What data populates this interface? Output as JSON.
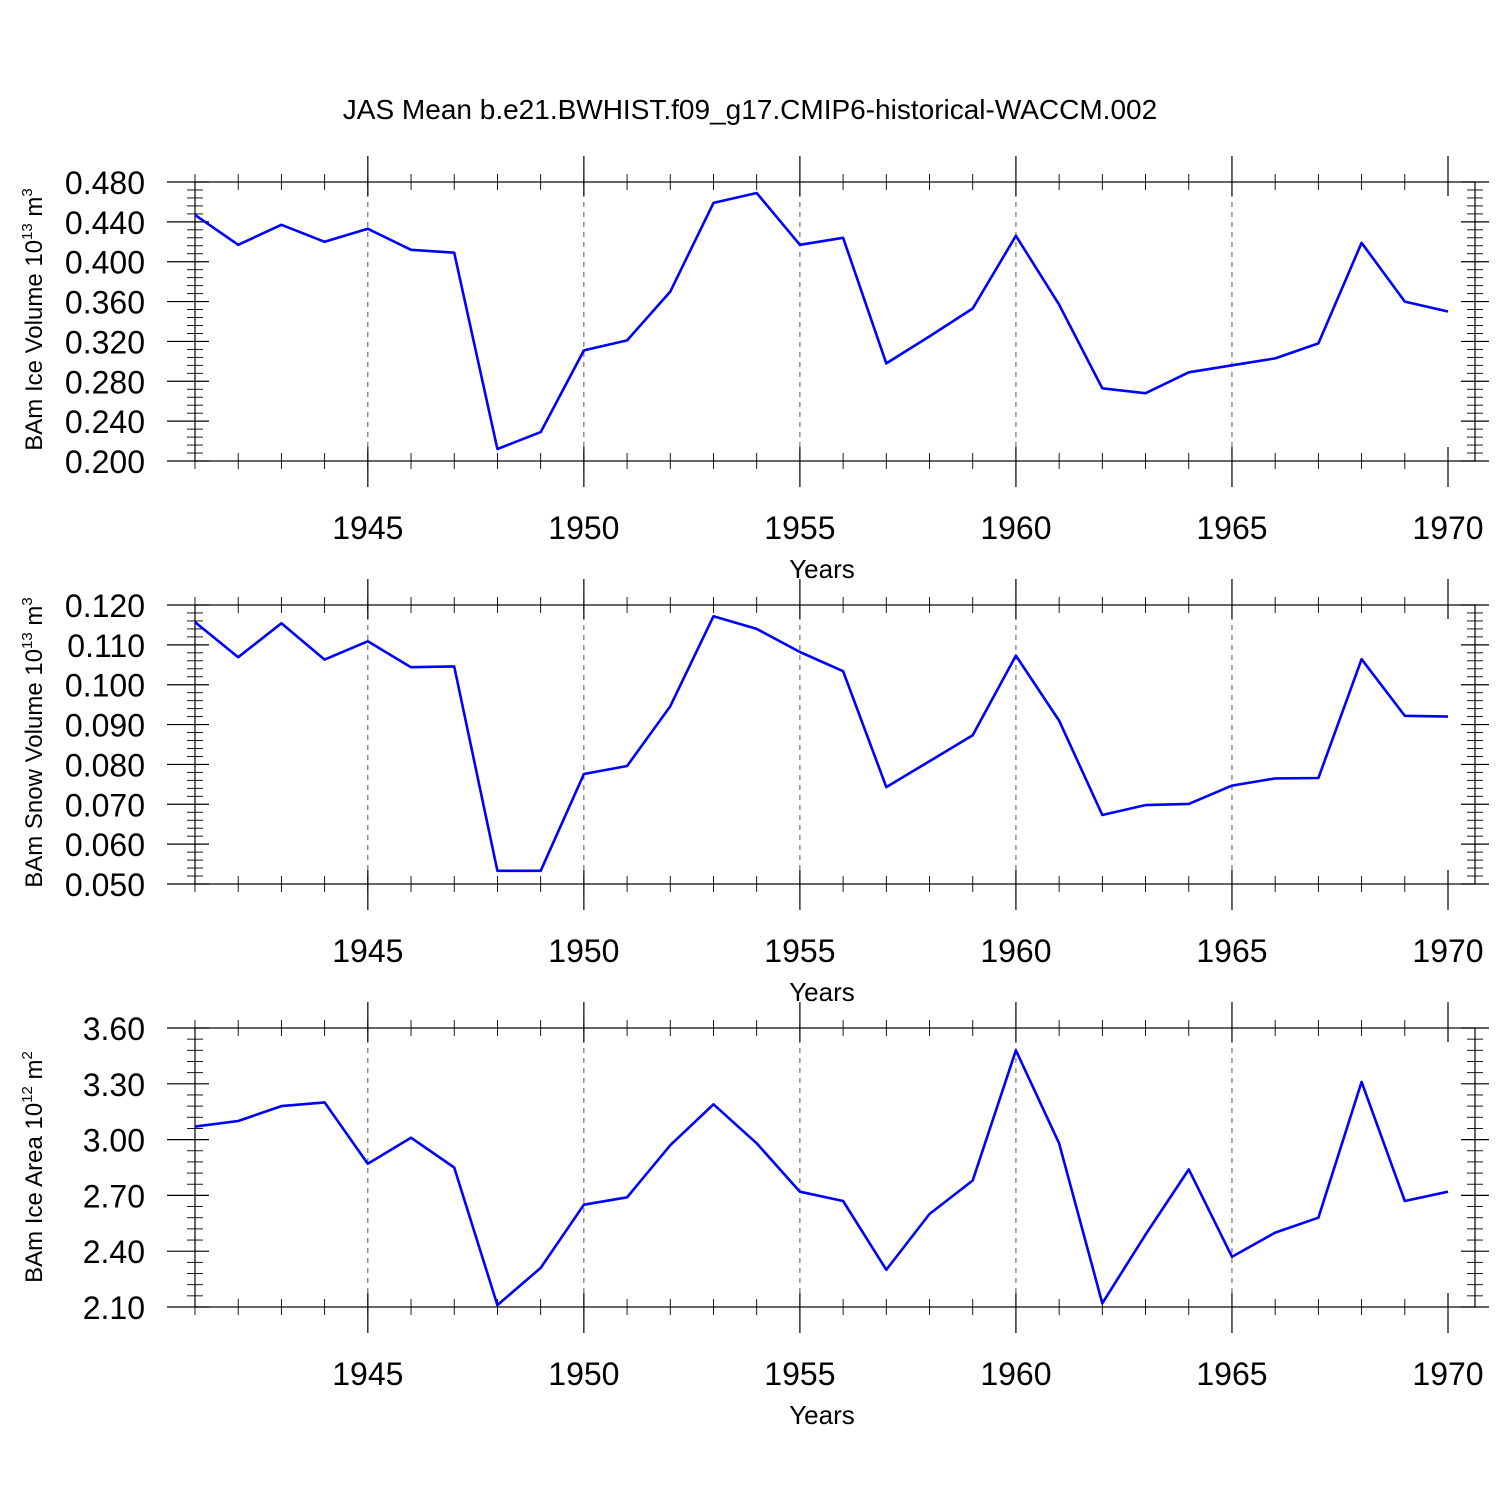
{
  "title": "JAS Mean b.e21.BWHIST.f09_g17.CMIP6-historical-WACCM.002",
  "chart_data": [
    {
      "type": "line",
      "ylabel": "BAm Ice Volume 10",
      "ylabel_exp": "13",
      "ylabel_unit": " m",
      "ylabel_unit_exp": "3",
      "xlabel": "Years",
      "xlim": [
        1941,
        1970
      ],
      "ylim": [
        0.2,
        0.48
      ],
      "xticks": [
        1945,
        1950,
        1955,
        1960,
        1965,
        1970
      ],
      "xtick_labels": [
        "1945",
        "1950",
        "1955",
        "1960",
        "1965",
        "1970"
      ],
      "yticks": [
        0.2,
        0.24,
        0.28,
        0.32,
        0.36,
        0.4,
        0.44,
        0.48
      ],
      "ytick_labels": [
        "0.200",
        "0.240",
        "0.280",
        "0.320",
        "0.360",
        "0.400",
        "0.440",
        "0.480"
      ],
      "vgrid": [
        1945,
        1950,
        1955,
        1960,
        1965
      ],
      "color": "#0000ff",
      "x": [
        1941,
        1942,
        1943,
        1944,
        1945,
        1946,
        1947,
        1948,
        1949,
        1950,
        1951,
        1952,
        1953,
        1954,
        1955,
        1956,
        1957,
        1958,
        1959,
        1960,
        1961,
        1962,
        1963,
        1964,
        1965,
        1966,
        1967,
        1968,
        1969,
        1970
      ],
      "y": [
        0.447,
        0.417,
        0.437,
        0.42,
        0.433,
        0.412,
        0.409,
        0.212,
        0.229,
        0.311,
        0.321,
        0.37,
        0.459,
        0.469,
        0.417,
        0.424,
        0.298,
        0.325,
        0.353,
        0.426,
        0.357,
        0.273,
        0.268,
        0.289,
        0.296,
        0.303,
        0.318,
        0.419,
        0.36,
        0.35
      ]
    },
    {
      "type": "line",
      "ylabel": "BAm Snow Volume 10",
      "ylabel_exp": "13",
      "ylabel_unit": " m",
      "ylabel_unit_exp": "3",
      "xlabel": "Years",
      "xlim": [
        1941,
        1970
      ],
      "ylim": [
        0.05,
        0.12
      ],
      "xticks": [
        1945,
        1950,
        1955,
        1960,
        1965,
        1970
      ],
      "xtick_labels": [
        "1945",
        "1950",
        "1955",
        "1960",
        "1965",
        "1970"
      ],
      "yticks": [
        0.05,
        0.06,
        0.07,
        0.08,
        0.09,
        0.1,
        0.11,
        0.12
      ],
      "ytick_labels": [
        "0.050",
        "0.060",
        "0.070",
        "0.080",
        "0.090",
        "0.100",
        "0.110",
        "0.120"
      ],
      "vgrid": [
        1945,
        1950,
        1955,
        1960,
        1965
      ],
      "color": "#0000ff",
      "x": [
        1941,
        1942,
        1943,
        1944,
        1945,
        1946,
        1947,
        1948,
        1949,
        1950,
        1951,
        1952,
        1953,
        1954,
        1955,
        1956,
        1957,
        1958,
        1959,
        1960,
        1961,
        1962,
        1963,
        1964,
        1965,
        1966,
        1967,
        1968,
        1969,
        1970
      ],
      "y": [
        0.1157,
        0.1069,
        0.1154,
        0.1063,
        0.1109,
        0.1044,
        0.1046,
        0.0533,
        0.0533,
        0.0776,
        0.0796,
        0.0946,
        0.1172,
        0.114,
        0.1082,
        0.1034,
        0.0743,
        0.0808,
        0.0873,
        0.1073,
        0.091,
        0.0673,
        0.0698,
        0.0701,
        0.0747,
        0.0765,
        0.0766,
        0.1064,
        0.0922,
        0.092
      ]
    },
    {
      "type": "line",
      "ylabel": "BAm Ice Area 10",
      "ylabel_exp": "12",
      "ylabel_unit": " m",
      "ylabel_unit_exp": "2",
      "xlabel": "Years",
      "xlim": [
        1941,
        1970
      ],
      "ylim": [
        2.1,
        3.6
      ],
      "xticks": [
        1945,
        1950,
        1955,
        1960,
        1965,
        1970
      ],
      "xtick_labels": [
        "1945",
        "1950",
        "1955",
        "1960",
        "1965",
        "1970"
      ],
      "yticks": [
        2.1,
        2.4,
        2.7,
        3.0,
        3.3,
        3.6
      ],
      "ytick_labels": [
        "2.10",
        "2.40",
        "2.70",
        "3.00",
        "3.30",
        "3.60"
      ],
      "vgrid": [
        1945,
        1950,
        1955,
        1960,
        1965
      ],
      "color": "#0000ff",
      "x": [
        1941,
        1942,
        1943,
        1944,
        1945,
        1946,
        1947,
        1948,
        1949,
        1950,
        1951,
        1952,
        1953,
        1954,
        1955,
        1956,
        1957,
        1958,
        1959,
        1960,
        1961,
        1962,
        1963,
        1964,
        1965,
        1966,
        1967,
        1968,
        1969,
        1970
      ],
      "y": [
        3.07,
        3.1,
        3.18,
        3.2,
        2.87,
        3.01,
        2.85,
        2.11,
        2.31,
        2.65,
        2.69,
        2.97,
        3.19,
        2.98,
        2.72,
        2.67,
        2.3,
        2.6,
        2.78,
        3.48,
        2.98,
        2.12,
        2.49,
        2.84,
        2.37,
        2.5,
        2.58,
        3.31,
        2.67,
        2.72
      ]
    }
  ]
}
